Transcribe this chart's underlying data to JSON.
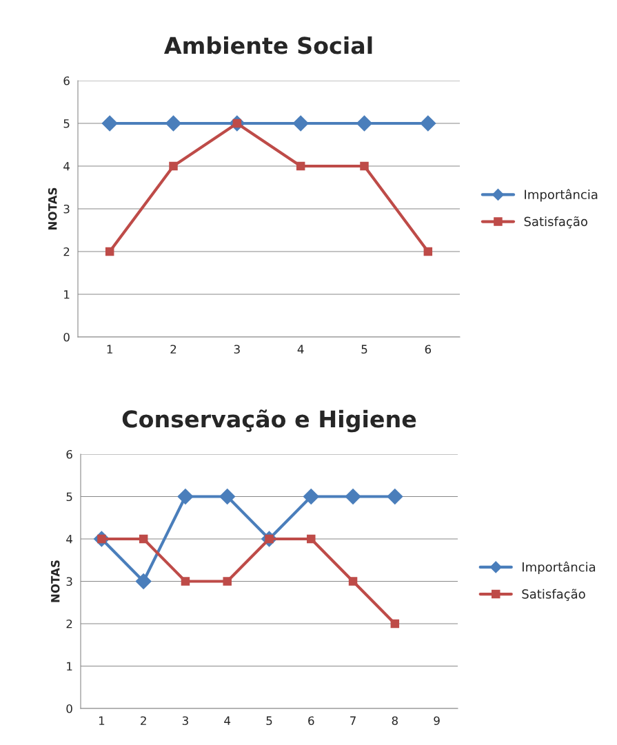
{
  "chart_data": [
    {
      "type": "line",
      "title": "Ambiente Social",
      "ylabel": "NOTAS",
      "categories": [
        "1",
        "2",
        "3",
        "4",
        "5",
        "6"
      ],
      "ylim": [
        0,
        6
      ],
      "yticks": [
        0,
        1,
        2,
        3,
        4,
        5,
        6
      ],
      "grid": "y",
      "legend": "right",
      "line_style": "solid",
      "series": [
        {
          "name": "Importância",
          "color": "#4a7ebb",
          "marker": "diamond",
          "values": [
            5,
            5,
            5,
            5,
            5,
            5
          ]
        },
        {
          "name": "Satisfação",
          "color": "#be4b48",
          "marker": "square",
          "values": [
            2,
            4,
            5,
            4,
            4,
            2
          ]
        }
      ]
    },
    {
      "type": "line",
      "title": "Conservação e Higiene",
      "ylabel": "NOTAS",
      "categories": [
        "1",
        "2",
        "3",
        "4",
        "5",
        "6",
        "7",
        "8",
        "9"
      ],
      "ylim": [
        0,
        6
      ],
      "yticks": [
        0,
        1,
        2,
        3,
        4,
        5,
        6
      ],
      "grid": "y",
      "legend": "right",
      "line_style": "solid",
      "series": [
        {
          "name": "Importância",
          "color": "#4a7ebb",
          "marker": "diamond",
          "values": [
            4,
            3,
            5,
            5,
            4,
            5,
            5,
            5,
            null
          ]
        },
        {
          "name": "Satisfação",
          "color": "#be4b48",
          "marker": "square",
          "values": [
            4,
            4,
            3,
            3,
            4,
            4,
            3,
            2,
            null
          ]
        }
      ]
    }
  ]
}
